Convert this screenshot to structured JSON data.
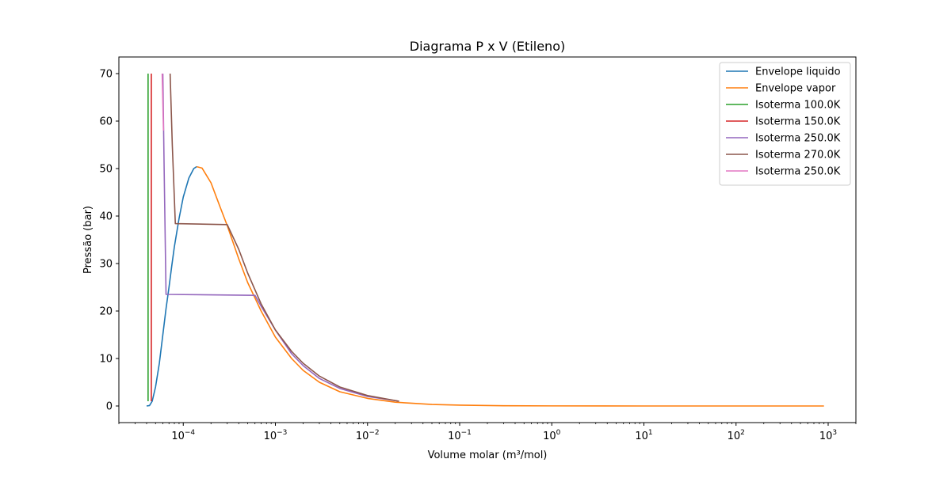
{
  "chart_data": {
    "type": "line",
    "title": "Diagrama P x V (Etileno)",
    "xlabel": "Volume molar (m³/mol)",
    "ylabel": "Pressão (bar)",
    "xscale": "log",
    "xlim": [
      2e-05,
      2000.0
    ],
    "ylim": [
      -3.5,
      73.5
    ],
    "grid": false,
    "legend_position": "top-right",
    "x_ticks": [
      {
        "value": 0.0001,
        "base": "10",
        "exp": "−4"
      },
      {
        "value": 0.001,
        "base": "10",
        "exp": "−3"
      },
      {
        "value": 0.01,
        "base": "10",
        "exp": "−2"
      },
      {
        "value": 0.1,
        "base": "10",
        "exp": "−1"
      },
      {
        "value": 1,
        "base": "10",
        "exp": "0"
      },
      {
        "value": 10,
        "base": "10",
        "exp": "1"
      },
      {
        "value": 100,
        "base": "10",
        "exp": "2"
      },
      {
        "value": 1000,
        "base": "10",
        "exp": "3"
      }
    ],
    "y_ticks": [
      {
        "value": 0,
        "label": "0"
      },
      {
        "value": 10,
        "label": "10"
      },
      {
        "value": 20,
        "label": "20"
      },
      {
        "value": 30,
        "label": "30"
      },
      {
        "value": 40,
        "label": "40"
      },
      {
        "value": 50,
        "label": "50"
      },
      {
        "value": 60,
        "label": "60"
      },
      {
        "value": 70,
        "label": "70"
      }
    ],
    "series": [
      {
        "name": "Envelope liquido",
        "color": "#1f77b4",
        "points": [
          [
            4e-05,
            0.0
          ],
          [
            4.3e-05,
            0.1
          ],
          [
            4.6e-05,
            1.0
          ],
          [
            5e-05,
            4.0
          ],
          [
            5.5e-05,
            9.0
          ],
          [
            6e-05,
            15.0
          ],
          [
            6.5e-05,
            20.5
          ],
          [
            7e-05,
            25.0
          ],
          [
            7.5e-05,
            29.5
          ],
          [
            8e-05,
            33.5
          ],
          [
            9e-05,
            39.5
          ],
          [
            0.0001,
            44.0
          ],
          [
            0.000115,
            48.0
          ],
          [
            0.00013,
            50.0
          ],
          [
            0.00014,
            50.4
          ]
        ]
      },
      {
        "name": "Envelope vapor",
        "color": "#ff7f0e",
        "points": [
          [
            0.00014,
            50.4
          ],
          [
            0.00016,
            50.1
          ],
          [
            0.0002,
            47.0
          ],
          [
            0.00025,
            42.0
          ],
          [
            0.0003,
            38.0
          ],
          [
            0.0004,
            31.0
          ],
          [
            0.0005,
            26.0
          ],
          [
            0.0007,
            20.0
          ],
          [
            0.001,
            14.5
          ],
          [
            0.0015,
            10.0
          ],
          [
            0.002,
            7.5
          ],
          [
            0.003,
            5.0
          ],
          [
            0.005,
            3.0
          ],
          [
            0.01,
            1.6
          ],
          [
            0.02,
            0.8
          ],
          [
            0.05,
            0.33
          ],
          [
            0.1,
            0.17
          ],
          [
            0.3,
            0.06
          ],
          [
            1,
            0.02
          ],
          [
            10,
            0.002
          ],
          [
            100,
            0.0
          ],
          [
            900,
            0.0
          ]
        ]
      },
      {
        "name": "Isoterma 100.0K",
        "color": "#2ca02c",
        "points": [
          [
            4.15e-05,
            70.0
          ],
          [
            4.15e-05,
            1.0
          ]
        ]
      },
      {
        "name": "Isoterma 150.0K",
        "color": "#d62728",
        "points": [
          [
            4.5e-05,
            70.0
          ],
          [
            4.5e-05,
            1.0
          ]
        ]
      },
      {
        "name": "Isoterma 250.0K",
        "color": "#9467bd",
        "points": [
          [
            6e-05,
            70.0
          ],
          [
            6.2e-05,
            50.0
          ],
          [
            6.5e-05,
            23.5
          ],
          [
            0.0006,
            23.3
          ],
          [
            0.0007,
            21.0
          ],
          [
            0.001,
            16.0
          ],
          [
            0.0015,
            11.0
          ],
          [
            0.002,
            8.5
          ],
          [
            0.003,
            5.8
          ],
          [
            0.005,
            3.7
          ],
          [
            0.01,
            2.0
          ],
          [
            0.022,
            1.0
          ]
        ]
      },
      {
        "name": "Isoterma 270.0K",
        "color": "#8c564b",
        "points": [
          [
            7.2e-05,
            70.0
          ],
          [
            7.6e-05,
            55.0
          ],
          [
            8.2e-05,
            38.4
          ],
          [
            0.0003,
            38.2
          ],
          [
            0.0004,
            33.0
          ],
          [
            0.0005,
            28.0
          ],
          [
            0.0007,
            21.5
          ],
          [
            0.001,
            16.0
          ],
          [
            0.0015,
            11.5
          ],
          [
            0.002,
            9.0
          ],
          [
            0.003,
            6.3
          ],
          [
            0.005,
            4.0
          ],
          [
            0.01,
            2.2
          ],
          [
            0.022,
            1.0
          ]
        ]
      },
      {
        "name": "Isoterma 250.0K",
        "color": "#e377c2",
        "points": [
          [
            5.9e-05,
            70.0
          ],
          [
            6.1e-05,
            58.0
          ]
        ]
      }
    ]
  }
}
